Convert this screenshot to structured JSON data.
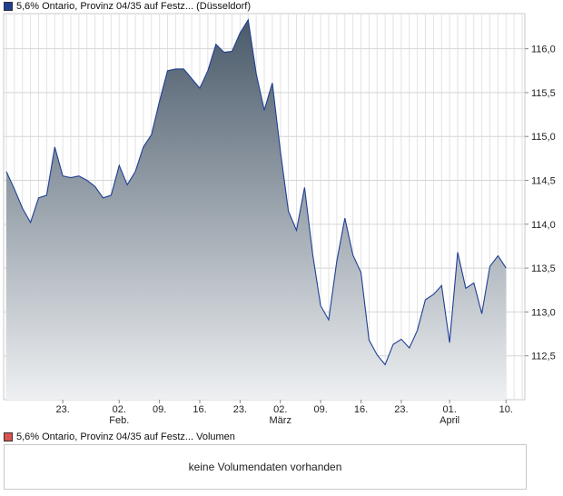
{
  "legend": {
    "price_series": "5,6% Ontario, Provinz 04/35 auf Festz... (Düsseldorf)",
    "volume_series": "5,6% Ontario, Provinz 04/35 auf Festz... Volumen",
    "price_color": "#1f3f95",
    "volume_color": "#d9534f"
  },
  "volume_panel": {
    "message": "keine Volumendaten vorhanden"
  },
  "chart_data": {
    "type": "area",
    "title": "",
    "xlabel": "",
    "ylabel": "",
    "ylim": [
      112.0,
      116.4
    ],
    "y_ticks": [
      "112,5",
      "113,0",
      "113,5",
      "114,0",
      "114,5",
      "115,0",
      "115,5",
      "116,0"
    ],
    "y_tick_values": [
      112.5,
      113.0,
      113.5,
      114.0,
      114.5,
      115.0,
      115.5,
      116.0
    ],
    "x_tick_labels": [
      {
        "day": "23.",
        "month": "",
        "index": 7
      },
      {
        "day": "02.",
        "month": "Feb.",
        "index": 14
      },
      {
        "day": "09.",
        "month": "",
        "index": 19
      },
      {
        "day": "16.",
        "month": "",
        "index": 24
      },
      {
        "day": "23.",
        "month": "",
        "index": 29
      },
      {
        "day": "02.",
        "month": "März",
        "index": 34
      },
      {
        "day": "09.",
        "month": "",
        "index": 39
      },
      {
        "day": "16.",
        "month": "",
        "index": 44
      },
      {
        "day": "23.",
        "month": "",
        "index": 49
      },
      {
        "day": "01.",
        "month": "April",
        "index": 55
      },
      {
        "day": "10.",
        "month": "",
        "index": 62
      }
    ],
    "x_count": 65,
    "grid": true,
    "line_color": "#1f3f95",
    "fill_top_color": "#4a5a6a",
    "fill_bottom_color": "#eef0f2",
    "series": [
      {
        "values": [
          114.6,
          114.4,
          114.18,
          114.02,
          114.3,
          114.33,
          114.88,
          114.55,
          114.53,
          114.55,
          114.5,
          114.43,
          114.3,
          114.33,
          114.67,
          114.45,
          114.6,
          114.88,
          115.02,
          115.4,
          115.75,
          115.77,
          115.77,
          115.66,
          115.55,
          115.75,
          116.05,
          115.96,
          115.97,
          116.18,
          116.33,
          115.72,
          115.3,
          115.61,
          114.83,
          114.15,
          113.93,
          114.42,
          113.66,
          113.07,
          112.91,
          113.58,
          114.07,
          113.65,
          113.45,
          112.68,
          112.51,
          112.4,
          112.63,
          112.69,
          112.59,
          112.79,
          113.14,
          113.2,
          113.3,
          112.65,
          113.68,
          113.27,
          113.33,
          112.98,
          113.52,
          113.64,
          113.5
        ]
      }
    ]
  }
}
